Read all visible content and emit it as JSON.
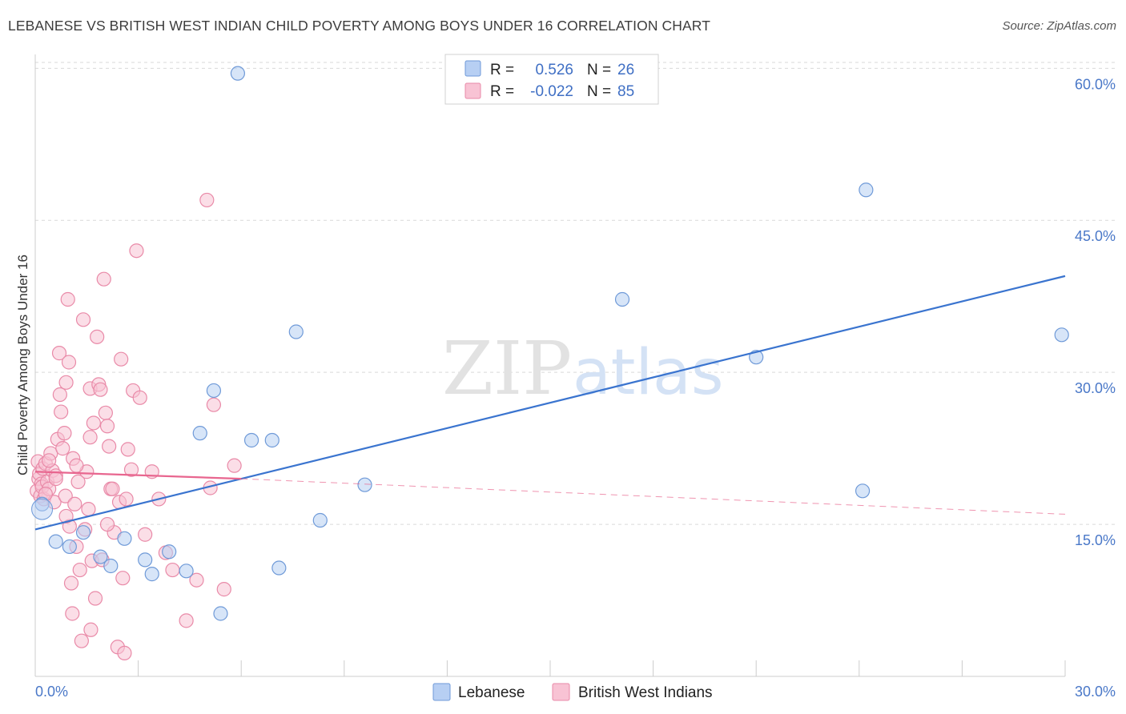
{
  "title": "LEBANESE VS BRITISH WEST INDIAN CHILD POVERTY AMONG BOYS UNDER 16 CORRELATION CHART",
  "source": "Source: ZipAtlas.com",
  "watermark": {
    "zip": "ZIP",
    "atlas": "atlas"
  },
  "colors": {
    "lebanese_fill": "#b7cff3",
    "lebanese_stroke": "#6f9ad8",
    "lebanese_line": "#3a74cf",
    "bwi_fill": "#f8c3d4",
    "bwi_stroke": "#e98aa8",
    "bwi_line": "#e8668f",
    "grid": "#d9d9d9",
    "tick_label": "#4a78c8"
  },
  "legend": {
    "rows": [
      {
        "r_label": "R = ",
        "r_value": "0.526",
        "n_label": "N = ",
        "n_value": "26"
      },
      {
        "r_label": "R = ",
        "r_value": "-0.022",
        "n_label": "N = ",
        "n_value": "85"
      }
    ]
  },
  "chart_data": {
    "type": "scatter",
    "xlabel": "",
    "ylabel": "Child Poverty Among Boys Under 16",
    "xlim": [
      0,
      30
    ],
    "ylim": [
      0,
      62
    ],
    "y_ticks": [
      {
        "value": 15,
        "label": "15.0%"
      },
      {
        "value": 30,
        "label": "30.0%"
      },
      {
        "value": 45,
        "label": "45.0%"
      },
      {
        "value": 60,
        "label": "60.0%"
      }
    ],
    "x_tick_labels": {
      "min": "0.0%",
      "max": "30.0%"
    },
    "grid": true,
    "legend_position": "top-center",
    "series": [
      {
        "name": "Lebanese",
        "r": 0.526,
        "n": 26,
        "trend": {
          "x": [
            0,
            30
          ],
          "y": [
            14.5,
            39.5
          ]
        },
        "points": [
          [
            0.2,
            17.0
          ],
          [
            0.6,
            13.3
          ],
          [
            1.0,
            12.8
          ],
          [
            1.4,
            14.2
          ],
          [
            1.9,
            11.8
          ],
          [
            2.2,
            10.9
          ],
          [
            2.6,
            13.6
          ],
          [
            3.2,
            11.5
          ],
          [
            3.4,
            10.1
          ],
          [
            3.9,
            12.3
          ],
          [
            4.4,
            10.4
          ],
          [
            4.8,
            24.0
          ],
          [
            5.2,
            28.2
          ],
          [
            5.4,
            6.2
          ],
          [
            5.9,
            59.5
          ],
          [
            6.3,
            23.3
          ],
          [
            6.9,
            23.3
          ],
          [
            7.1,
            10.7
          ],
          [
            7.6,
            34.0
          ],
          [
            8.3,
            15.4
          ],
          [
            9.6,
            18.9
          ],
          [
            17.1,
            37.2
          ],
          [
            21.0,
            31.5
          ],
          [
            24.1,
            18.3
          ],
          [
            24.2,
            48.0
          ],
          [
            29.9,
            33.7
          ]
        ]
      },
      {
        "name": "British West Indians",
        "r": -0.022,
        "n": 85,
        "trend": {
          "x": [
            0,
            6.0
          ],
          "y": [
            20.2,
            19.5
          ]
        },
        "trend_dashed": {
          "x": [
            6.0,
            30
          ],
          "y": [
            19.5,
            16.0
          ]
        },
        "points": [
          [
            0.05,
            18.3
          ],
          [
            0.08,
            21.2
          ],
          [
            0.1,
            19.5
          ],
          [
            0.12,
            20.0
          ],
          [
            0.15,
            17.8
          ],
          [
            0.18,
            19.0
          ],
          [
            0.2,
            18.7
          ],
          [
            0.22,
            20.5
          ],
          [
            0.25,
            17.5
          ],
          [
            0.3,
            21.0
          ],
          [
            0.35,
            19.2
          ],
          [
            0.4,
            18.5
          ],
          [
            0.45,
            22.0
          ],
          [
            0.5,
            20.3
          ],
          [
            0.55,
            17.2
          ],
          [
            0.6,
            19.8
          ],
          [
            0.65,
            23.4
          ],
          [
            0.7,
            31.9
          ],
          [
            0.72,
            27.8
          ],
          [
            0.75,
            26.1
          ],
          [
            0.8,
            22.5
          ],
          [
            0.85,
            24.0
          ],
          [
            0.88,
            17.8
          ],
          [
            0.9,
            29.0
          ],
          [
            0.95,
            37.2
          ],
          [
            0.98,
            31.0
          ],
          [
            1.0,
            14.8
          ],
          [
            1.05,
            9.2
          ],
          [
            1.08,
            6.2
          ],
          [
            1.1,
            21.5
          ],
          [
            1.15,
            17.0
          ],
          [
            1.2,
            12.8
          ],
          [
            1.25,
            19.2
          ],
          [
            1.3,
            10.5
          ],
          [
            1.35,
            3.5
          ],
          [
            1.4,
            35.2
          ],
          [
            1.45,
            14.5
          ],
          [
            1.5,
            20.2
          ],
          [
            1.55,
            16.5
          ],
          [
            1.6,
            28.4
          ],
          [
            1.62,
            4.6
          ],
          [
            1.65,
            11.4
          ],
          [
            1.7,
            25.0
          ],
          [
            1.75,
            7.7
          ],
          [
            1.8,
            33.5
          ],
          [
            1.85,
            28.8
          ],
          [
            1.9,
            28.3
          ],
          [
            1.95,
            11.5
          ],
          [
            2.0,
            39.2
          ],
          [
            2.05,
            26.0
          ],
          [
            2.1,
            24.7
          ],
          [
            2.15,
            22.7
          ],
          [
            2.2,
            18.5
          ],
          [
            2.25,
            18.5
          ],
          [
            2.3,
            14.2
          ],
          [
            2.4,
            2.9
          ],
          [
            2.45,
            17.2
          ],
          [
            2.5,
            31.3
          ],
          [
            2.55,
            9.7
          ],
          [
            2.6,
            2.3
          ],
          [
            2.65,
            17.5
          ],
          [
            2.7,
            22.4
          ],
          [
            2.8,
            20.4
          ],
          [
            2.85,
            28.2
          ],
          [
            2.95,
            42.0
          ],
          [
            3.05,
            27.5
          ],
          [
            3.2,
            14.0
          ],
          [
            3.4,
            20.2
          ],
          [
            3.6,
            17.5
          ],
          [
            3.8,
            12.2
          ],
          [
            4.0,
            10.5
          ],
          [
            4.4,
            5.5
          ],
          [
            4.7,
            9.5
          ],
          [
            5.0,
            47.0
          ],
          [
            5.1,
            18.6
          ],
          [
            5.2,
            26.8
          ],
          [
            5.5,
            8.6
          ],
          [
            5.8,
            20.8
          ],
          [
            0.3,
            18.0
          ],
          [
            0.6,
            19.5
          ],
          [
            1.2,
            20.8
          ],
          [
            0.9,
            15.8
          ],
          [
            1.6,
            23.6
          ],
          [
            2.1,
            15.0
          ],
          [
            0.4,
            21.3
          ]
        ]
      }
    ]
  }
}
